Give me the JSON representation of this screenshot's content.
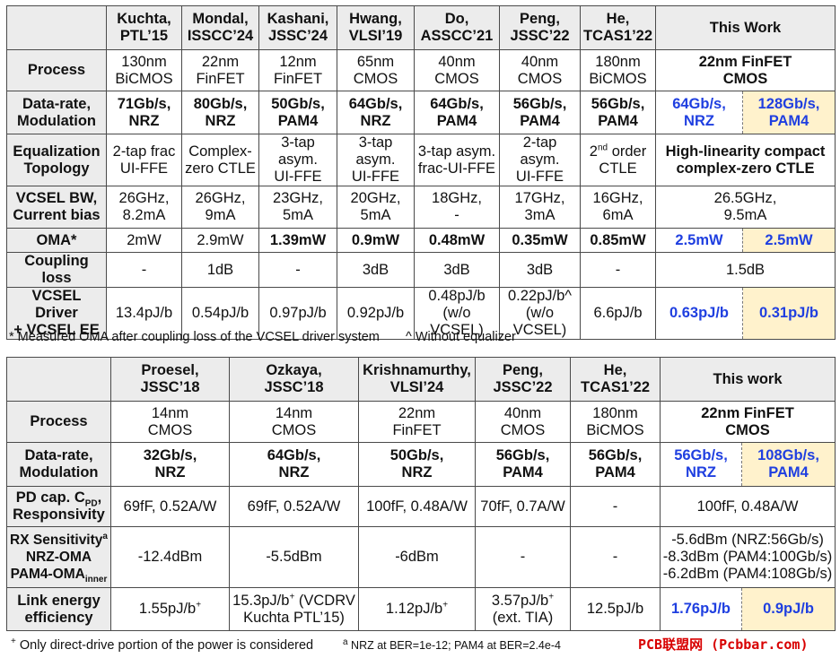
{
  "table1": {
    "headers": [
      "Kuchta,\nPTL’15",
      "Mondal,\nISSCC’24",
      "Kashani,\nJSSC’24",
      "Hwang,\nVLSI’19",
      "Do,\nASSCC’21",
      "Peng,\nJSSC’22",
      "He,\nTCAS1’22",
      "This Work"
    ],
    "rows": {
      "process": {
        "label": "Process",
        "cells": [
          "130nm\nBiCMOS",
          "22nm\nFinFET",
          "12nm\nFinFET",
          "65nm\nCMOS",
          "40nm\nCMOS",
          "40nm\nCMOS",
          "180nm\nBiCMOS",
          "22nm FinFET\nCMOS"
        ]
      },
      "datarate": {
        "label": "Data-rate,\nModulation",
        "cells": [
          "71Gb/s,\nNRZ",
          "80Gb/s,\nNRZ",
          "50Gb/s,\nPAM4",
          "64Gb/s,\nNRZ",
          "64Gb/s,\nPAM4",
          "56Gb/s,\nPAM4",
          "56Gb/s,\nPAM4",
          "64Gb/s,\nNRZ",
          "128Gb/s,\nPAM4"
        ]
      },
      "eq": {
        "label": "Equalization\nTopology",
        "cells": [
          "2-tap frac\nUI-FFE",
          "Complex-\nzero CTLE",
          "3-tap asym.\nUI-FFE",
          "3-tap asym.\nUI-FFE",
          "3-tap asym.\nfrac-UI-FFE",
          "2-tap asym.\nUI-FFE",
          "order\nCTLE",
          "High-linearity compact\ncomplex-zero CTLE"
        ],
        "he_prefix": "2",
        "he_sup": "nd"
      },
      "vcsel_bw": {
        "label": "VCSEL BW,\nCurrent bias",
        "cells": [
          "26GHz,\n8.2mA",
          "26GHz,\n9mA",
          "23GHz,\n5mA",
          "20GHz,\n5mA",
          "18GHz,\n-",
          "17GHz,\n3mA",
          "16GHz,\n6mA",
          "26.5GHz,\n9.5mA"
        ]
      },
      "oma": {
        "label": "OMA*",
        "cells": [
          "2mW",
          "2.9mW",
          "1.39mW",
          "0.9mW",
          "0.48mW",
          "0.35mW",
          "0.85mW",
          "2.5mW",
          "2.5mW"
        ]
      },
      "coupling": {
        "label": "Coupling loss",
        "cells": [
          "-",
          "1dB",
          "-",
          "3dB",
          "3dB",
          "3dB",
          "-",
          "1.5dB"
        ]
      },
      "driver": {
        "label": "VCSEL Driver\n+ VCSEL EE",
        "cells": [
          "13.4pJ/b",
          "0.54pJ/b",
          "0.97pJ/b",
          "0.92pJ/b",
          "0.48pJ/b\n(w/o VCSEL)",
          "0.22pJ/b^\n(w/o VCSEL)",
          "6.6pJ/b",
          "0.63pJ/b",
          "0.31pJ/b"
        ]
      }
    },
    "footnote_a": "* Measured OMA after coupling loss of the VCSEL driver system",
    "footnote_b": "^ Without equalizer"
  },
  "table2": {
    "headers": [
      "Proesel,\nJSSC’18",
      "Ozkaya,\nJSSC’18",
      "Krishnamurthy,\nVLSI’24",
      "Peng,\nJSSC’22",
      "He,\nTCAS1’22",
      "This work"
    ],
    "rows": {
      "process": {
        "label": "Process",
        "cells": [
          "14nm\nCMOS",
          "14nm\nCMOS",
          "22nm\nFinFET",
          "40nm\nCMOS",
          "180nm\nBiCMOS",
          "22nm FinFET\nCMOS"
        ]
      },
      "datarate": {
        "label": "Data-rate,\nModulation",
        "cells": [
          "32Gb/s,\nNRZ",
          "64Gb/s,\nNRZ",
          "50Gb/s,\nNRZ",
          "56Gb/s,\nPAM4",
          "56Gb/s,\nPAM4",
          "56Gb/s,\nNRZ",
          "108Gb/s,\nPAM4"
        ]
      },
      "pdcap": {
        "label_a": "PD cap. C",
        "label_sub": "PD",
        "label_b": ",",
        "label_c": "Responsivity",
        "cells": [
          "69fF, 0.52A/W",
          "69fF, 0.52A/W",
          "100fF, 0.48A/W",
          "70fF, 0.7A/W",
          "-",
          "100fF, 0.48A/W"
        ]
      },
      "rxsens": {
        "label_a": "RX Sensitivity",
        "label_a_sup": "a",
        "label_b": "NRZ-OMA",
        "label_c": "PAM4-OMA",
        "label_c_sub": "inner",
        "cells": [
          "-12.4dBm",
          "-5.5dBm",
          "-6dBm",
          "-",
          "-",
          "-5.6dBm (NRZ:56Gb/s)\n-8.3dBm (PAM4:100Gb/s)\n-6.2dBm (PAM4:108Gb/s)"
        ]
      },
      "link": {
        "label": "Link energy\nefficiency",
        "cells": [
          "1.55pJ/b",
          "15.3pJ/b",
          "1.12pJ/b",
          "3.57pJ/b",
          "12.5pJ/b",
          "1.76pJ/b",
          "0.9pJ/b"
        ],
        "sup": "+",
        "ozkaya_tail": " (VCDRV\nKuchta PTL’15)",
        "peng_tail": "(ext. TIA)"
      }
    },
    "footnote_a_sup": "+",
    "footnote_a": " Only direct-drive portion of the power is considered",
    "footnote_b_sup": "a",
    "footnote_b": " NRZ at BER=1e-12; PAM4 at BER=2.4e-4"
  },
  "watermark": "PCB联盟网 (Pcbbar.com)"
}
